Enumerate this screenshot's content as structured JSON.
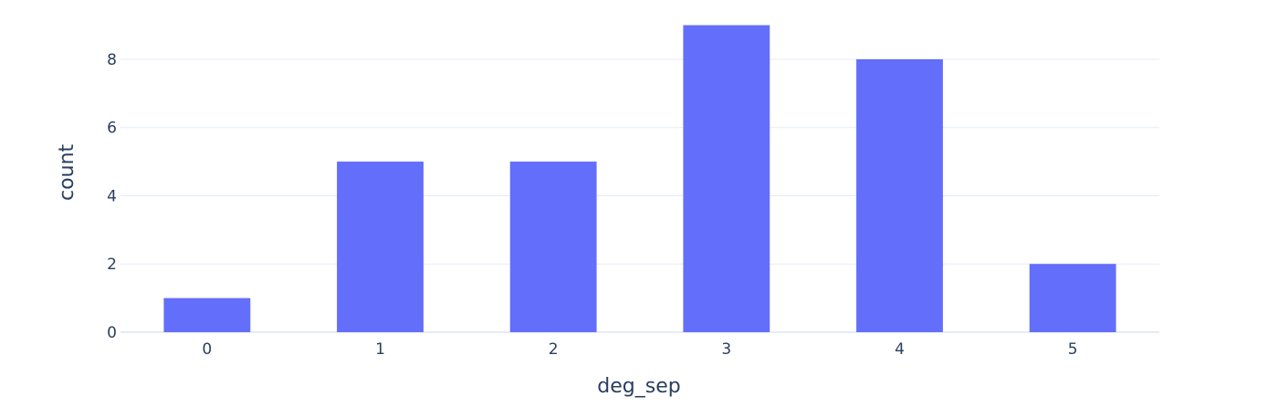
{
  "colors": {
    "bar": "#636efa",
    "grid": "#e5ecf6",
    "zero_line": "#e5ecf6",
    "text": "#2a3f5f",
    "background": "#ffffff"
  },
  "chart_data": {
    "type": "bar",
    "categories": [
      "0",
      "1",
      "2",
      "3",
      "4",
      "5"
    ],
    "values": [
      1,
      5,
      5,
      9,
      8,
      2
    ],
    "title": "",
    "xlabel": "deg_sep",
    "ylabel": "count",
    "ylim": [
      0,
      9.47
    ],
    "y_ticks": [
      0,
      2,
      4,
      6,
      8
    ],
    "grid": true,
    "legend": "none"
  }
}
